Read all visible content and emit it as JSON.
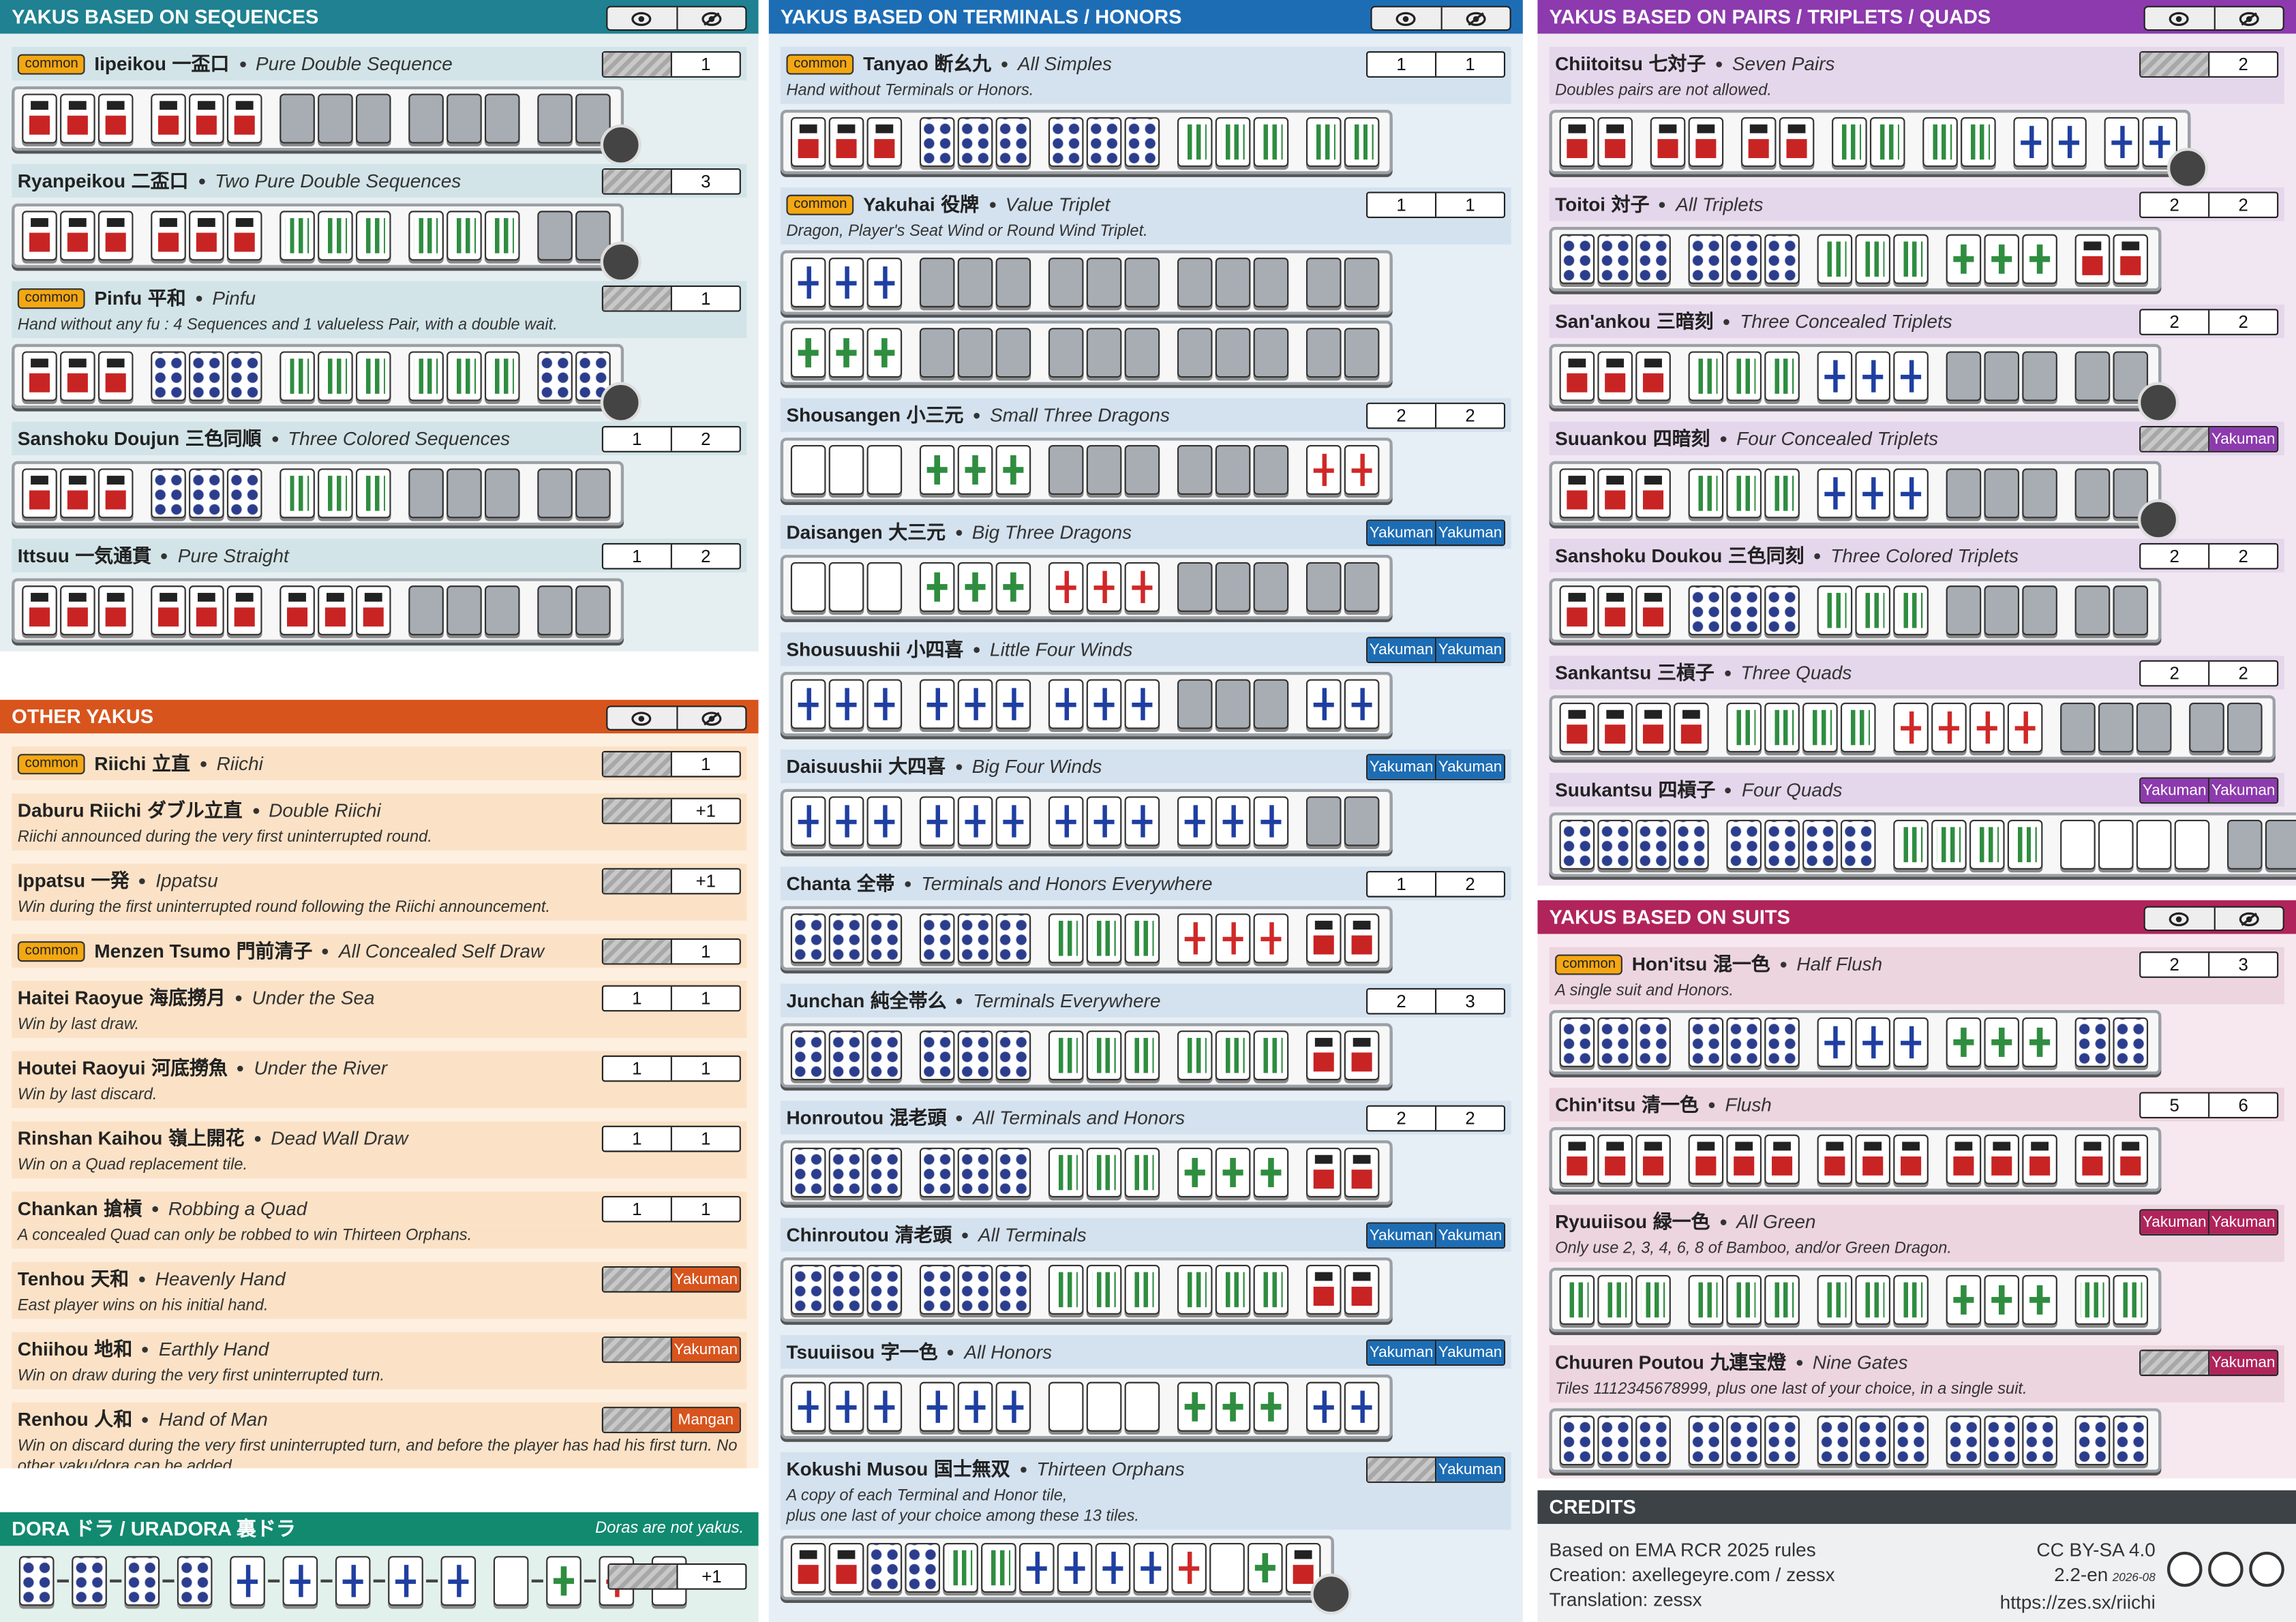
{
  "sections": [
    {
      "title": "YAKUS BASED ON SEQUENCES",
      "yakus": [
        {
          "tag": "common",
          "name": "Iipeikou",
          "kanji": "一盃口",
          "english": "Pure Double Sequence",
          "han": [
            1
          ]
        },
        {
          "name": "Ryanpeikou",
          "kanji": "二盃口",
          "english": "Two Pure Double Sequences",
          "han": [
            3
          ]
        },
        {
          "tag": "common",
          "name": "Pinfu",
          "kanji": "平和",
          "english": "Pinfu",
          "description": "Hand without any fu : 4 Sequences and 1 valueless Pair, with a double wait.",
          "han": [
            1
          ]
        },
        {
          "name": "Sanshoku Doujun",
          "kanji": "三色同順",
          "english": "Three Colored Sequences",
          "han": [
            1,
            2
          ]
        },
        {
          "name": "Ittsuu",
          "kanji": "一気通貫",
          "english": "Pure Straight",
          "han": [
            1,
            2
          ]
        }
      ]
    },
    {
      "title": "OTHER YAKUS",
      "yakus": [
        {
          "tag": "common",
          "name": "Riichi",
          "kanji": "立直",
          "english": "Riichi",
          "han": [
            1
          ]
        },
        {
          "name": "Daburu Riichi",
          "kanji": "ダブル立直",
          "english": "Double Riichi",
          "description": "Riichi announced during the very first uninterrupted round.",
          "han": [
            "+1"
          ]
        },
        {
          "name": "Ippatsu",
          "kanji": "一発",
          "english": "Ippatsu",
          "description": "Win during the first uninterrupted round following the Riichi announcement.",
          "han": [
            "+1"
          ]
        },
        {
          "tag": "common",
          "name": "Menzen Tsumo",
          "kanji": "門前清子",
          "english": "All Concealed Self Draw",
          "han": [
            1
          ]
        },
        {
          "name": "Haitei Raoyue",
          "kanji": "海底撈月",
          "english": "Under the Sea",
          "description": "Win by last draw.",
          "han": [
            1,
            1
          ]
        },
        {
          "name": "Houtei Raoyui",
          "kanji": "河底撈魚",
          "english": "Under the River",
          "description": "Win by last discard.",
          "han": [
            1,
            1
          ]
        },
        {
          "name": "Rinshan Kaihou",
          "kanji": "嶺上開花",
          "english": "Dead Wall Draw",
          "description": "Win on a Quad replacement tile.",
          "han": [
            1,
            1
          ]
        },
        {
          "name": "Chankan",
          "kanji": "搶槓",
          "english": "Robbing a Quad",
          "description": "A concealed Quad can only be robbed to win Thirteen Orphans.",
          "han": [
            1,
            1
          ]
        },
        {
          "name": "Tenhou",
          "kanji": "天和",
          "english": "Heavenly Hand",
          "description": "East player wins on his initial hand.",
          "han": [
            "Yakuman"
          ]
        },
        {
          "name": "Chiihou",
          "kanji": "地和",
          "english": "Earthly Hand",
          "description": "Win on draw during the very first uninterrupted turn.",
          "han": [
            "Yakuman"
          ]
        },
        {
          "name": "Renhou",
          "kanji": "人和",
          "english": "Hand of Man",
          "description": "Win on discard during the very first uninterrupted turn, and before the player has had his first turn. No other yaku/dora can be added.",
          "han": [
            "Mangan"
          ]
        }
      ]
    },
    {
      "title": "DORA ドラ / URADORA 裏ドラ",
      "note": "Doras are not yakus.",
      "han": [
        "+1"
      ]
    },
    {
      "title": "YAKUS BASED ON TERMINALS / HONORS",
      "yakus": [
        {
          "tag": "common",
          "name": "Tanyao",
          "kanji": "断幺九",
          "english": "All Simples",
          "description": "Hand without Terminals or Honors.",
          "han": [
            1,
            1
          ]
        },
        {
          "tag": "common",
          "name": "Yakuhai",
          "kanji": "役牌",
          "english": "Value Triplet",
          "description": "Dragon, Player's Seat Wind or Round Wind Triplet.",
          "han": [
            1,
            1
          ]
        },
        {
          "name": "Shousangen",
          "kanji": "小三元",
          "english": "Small Three Dragons",
          "han": [
            2,
            2
          ]
        },
        {
          "name": "Daisangen",
          "kanji": "大三元",
          "english": "Big Three Dragons",
          "han": [
            "Yakuman",
            "Yakuman"
          ]
        },
        {
          "name": "Shousuushii",
          "kanji": "小四喜",
          "english": "Little Four Winds",
          "han": [
            "Yakuman",
            "Yakuman"
          ]
        },
        {
          "name": "Daisuushii",
          "kanji": "大四喜",
          "english": "Big Four Winds",
          "han": [
            "Yakuman",
            "Yakuman"
          ]
        },
        {
          "name": "Chanta",
          "kanji": "全帯",
          "english": "Terminals and Honors Everywhere",
          "han": [
            1,
            2
          ]
        },
        {
          "name": "Junchan",
          "kanji": "純全帯么",
          "english": "Terminals Everywhere",
          "han": [
            2,
            3
          ]
        },
        {
          "name": "Honroutou",
          "kanji": "混老頭",
          "english": "All Terminals and Honors",
          "han": [
            2,
            2
          ]
        },
        {
          "name": "Chinroutou",
          "kanji": "清老頭",
          "english": "All Terminals",
          "han": [
            "Yakuman",
            "Yakuman"
          ]
        },
        {
          "name": "Tsuuiisou",
          "kanji": "字一色",
          "english": "All Honors",
          "han": [
            "Yakuman",
            "Yakuman"
          ]
        },
        {
          "name": "Kokushi Musou",
          "kanji": "国士無双",
          "english": "Thirteen Orphans",
          "description": "A copy of each Terminal and Honor tile,\nplus one last of your choice among these 13 tiles.",
          "han": [
            "Yakuman"
          ]
        }
      ]
    },
    {
      "title": "YAKUS BASED ON PAIRS / TRIPLETS / QUADS",
      "yakus": [
        {
          "name": "Chiitoitsu",
          "kanji": "七対子",
          "english": "Seven Pairs",
          "description": "Doubles pairs are not allowed.",
          "han": [
            2
          ]
        },
        {
          "name": "Toitoi",
          "kanji": "対子",
          "english": "All Triplets",
          "han": [
            2,
            2
          ]
        },
        {
          "name": "San'ankou",
          "kanji": "三暗刻",
          "english": "Three Concealed Triplets",
          "han": [
            2,
            2
          ]
        },
        {
          "name": "Suuankou",
          "kanji": "四暗刻",
          "english": "Four Concealed Triplets",
          "han": [
            "Yakuman"
          ]
        },
        {
          "name": "Sanshoku Doukou",
          "kanji": "三色同刻",
          "english": "Three Colored Triplets",
          "han": [
            2,
            2
          ]
        },
        {
          "name": "Sankantsu",
          "kanji": "三槓子",
          "english": "Three Quads",
          "han": [
            2,
            2
          ]
        },
        {
          "name": "Suukantsu",
          "kanji": "四槓子",
          "english": "Four Quads",
          "han": [
            "Yakuman",
            "Yakuman"
          ]
        }
      ]
    },
    {
      "title": "YAKUS BASED ON SUITS",
      "yakus": [
        {
          "tag": "common",
          "name": "Hon'itsu",
          "kanji": "混一色",
          "english": "Half Flush",
          "description": "A single suit and Honors.",
          "han": [
            2,
            3
          ]
        },
        {
          "name": "Chin'itsu",
          "kanji": "清一色",
          "english": "Flush",
          "han": [
            5,
            6
          ]
        },
        {
          "name": "Ryuuiisou",
          "kanji": "緑一色",
          "english": "All Green",
          "description": "Only use 2, 3, 4, 6, 8 of Bamboo, and/or Green Dragon.",
          "han": [
            "Yakuman",
            "Yakuman"
          ]
        },
        {
          "name": "Chuuren Poutou",
          "kanji": "九連宝燈",
          "english": "Nine Gates",
          "description": "Tiles 1112345678999, plus one last of your choice, in a single suit.",
          "han": [
            "Yakuman"
          ]
        }
      ]
    }
  ],
  "credits": {
    "title": "CREDITS",
    "lines": [
      "Based on EMA RCR 2025 rules",
      "Creation: axellegeyre.com / zessx",
      "Translation: zessx"
    ],
    "license": "CC BY-SA 4.0",
    "version": "2.2-en",
    "date": "2026-08",
    "url": "https://zes.sx/riichi"
  }
}
